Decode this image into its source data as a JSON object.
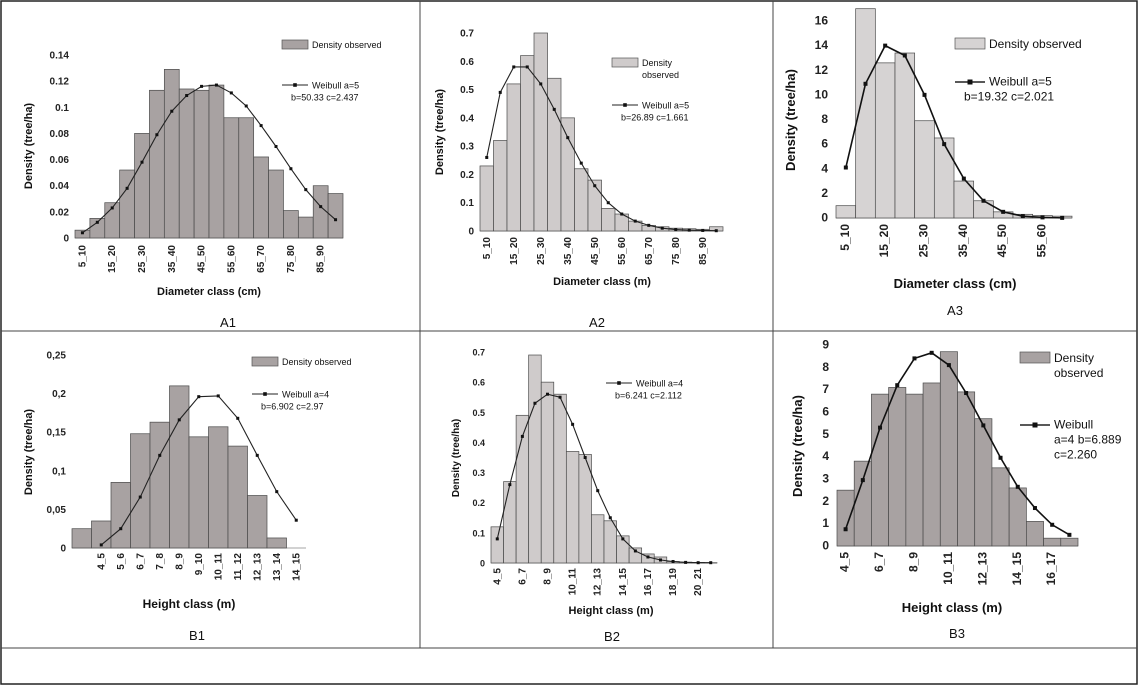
{
  "chart_data": [
    {
      "id": "A1",
      "type": "bar",
      "caption": "A1",
      "ylabel": "Density (tree/ha)",
      "xlabel": "Diameter class (cm)",
      "ylim": [
        0,
        0.14
      ],
      "yticks": [
        "0",
        "0.02",
        "0.04",
        "0.06",
        "0.08",
        "0.1",
        "0.12",
        "0.14"
      ],
      "categories": [
        "5_10",
        "10_15",
        "15_20",
        "20_25",
        "25_30",
        "30_35",
        "35_40",
        "40_45",
        "45_50",
        "50_55",
        "55_60",
        "60_65",
        "65_70",
        "70_75",
        "75_80",
        "80_85",
        "85_90",
        "90_95"
      ],
      "tick_labels": [
        "5_10",
        "15_20",
        "25_30",
        "35_40",
        "45_50",
        "55_60",
        "65_70",
        "75_80",
        "85_90"
      ],
      "bar_color": "#a8a2a2",
      "series": [
        {
          "name": "Density observed",
          "kind": "bar",
          "values": [
            0.006,
            0.015,
            0.027,
            0.052,
            0.08,
            0.113,
            0.129,
            0.114,
            0.113,
            0.117,
            0.092,
            0.092,
            0.062,
            0.052,
            0.021,
            0.016,
            0.04,
            0.034
          ]
        },
        {
          "name": "Weibull a=5",
          "kind": "line",
          "values": [
            0.004,
            0.012,
            0.023,
            0.038,
            0.058,
            0.079,
            0.097,
            0.109,
            0.116,
            0.117,
            0.111,
            0.101,
            0.086,
            0.07,
            0.053,
            0.037,
            0.024,
            0.014
          ]
        }
      ],
      "legend": {
        "bar": "Density observed",
        "line": "Weibull a=5",
        "line2": "b=50.33 c=2.437"
      }
    },
    {
      "id": "A2",
      "type": "bar",
      "caption": "A2",
      "ylabel": "Density (tree/ha)",
      "xlabel": "Diameter class (m)",
      "ylim": [
        0,
        0.7
      ],
      "yticks": [
        "0",
        "0.1",
        "0.2",
        "0.3",
        "0.4",
        "0.5",
        "0.6",
        "0.7"
      ],
      "categories": [
        "5_10",
        "10_15",
        "15_20",
        "20_25",
        "25_30",
        "30_35",
        "35_40",
        "40_45",
        "45_50",
        "50_55",
        "55_60",
        "60_65",
        "65_70",
        "70_75",
        "75_80",
        "80_85",
        "85_90",
        "90_95"
      ],
      "tick_labels": [
        "5_10",
        "15_20",
        "25_30",
        "35_40",
        "45_50",
        "55_60",
        "65_70",
        "75_80",
        "85_90"
      ],
      "bar_color": "#cfcbcb",
      "series": [
        {
          "name": "Density observed",
          "kind": "bar",
          "values": [
            0.23,
            0.32,
            0.52,
            0.62,
            0.7,
            0.54,
            0.4,
            0.22,
            0.18,
            0.08,
            0.06,
            0.035,
            0.02,
            0.015,
            0.01,
            0.008,
            0.006,
            0.015
          ]
        },
        {
          "name": "Weibull a=5",
          "kind": "line",
          "values": [
            0.26,
            0.49,
            0.58,
            0.58,
            0.52,
            0.43,
            0.33,
            0.24,
            0.16,
            0.1,
            0.06,
            0.035,
            0.02,
            0.01,
            0.005,
            0.003,
            0.002,
            0.001
          ]
        }
      ],
      "legend": {
        "bar": "Density",
        "bar2": "observed",
        "line": "Weibull a=5",
        "line2": "b=26.89 c=1.661"
      }
    },
    {
      "id": "A3",
      "type": "bar",
      "caption": "A3",
      "ylabel": "Density (tree/ha)",
      "xlabel": "Diameter class (cm)",
      "ylim": [
        0,
        16
      ],
      "yticks": [
        "0",
        "2",
        "4",
        "6",
        "8",
        "10",
        "12",
        "14",
        "16"
      ],
      "categories": [
        "5_10",
        "10_15",
        "15_20",
        "20_25",
        "25_30",
        "30_35",
        "35_40",
        "40_45",
        "45_50",
        "50_55",
        "55_60",
        "60_65"
      ],
      "tick_labels": [
        "5_10",
        "15_20",
        "25_30",
        "35_40",
        "45_50",
        "55_60"
      ],
      "bar_color": "#d6d3d3",
      "series": [
        {
          "name": "Density observed",
          "kind": "bar",
          "values": [
            1,
            17,
            12.6,
            13.4,
            7.9,
            6.5,
            3,
            1.4,
            0.5,
            0.3,
            0.2,
            0.15
          ]
        },
        {
          "name": "Weibull a=5",
          "kind": "line",
          "values": [
            4.1,
            10.9,
            14,
            13.2,
            10,
            6,
            3.2,
            1.4,
            0.5,
            0.15,
            0.05,
            0.01
          ]
        }
      ],
      "legend": {
        "bar": "Density observed",
        "line": "Weibull a=5",
        "line2": "b=19.32 c=2.021"
      }
    },
    {
      "id": "B1",
      "type": "bar",
      "caption": "B1",
      "ylabel": "Density (tree/ha)",
      "xlabel": "Height class (m)",
      "ylim": [
        0,
        0.25
      ],
      "yticks": [
        "0",
        "0,05",
        "0,1",
        "0,15",
        "0,2",
        "0,25"
      ],
      "categories": [
        "3_4",
        "4_5",
        "5_6",
        "6_7",
        "7_8",
        "8_9",
        "9_10",
        "10_11",
        "11_12",
        "12_13",
        "13_14",
        "14_15"
      ],
      "tick_labels": [
        "",
        "4_5",
        "5_6",
        "6_7",
        "7_8",
        "8_9",
        "9_10",
        "10_11",
        "11_12",
        "12_13",
        "13_14",
        "14_15"
      ],
      "bar_color": "#a8a2a2",
      "series": [
        {
          "name": "Density observed",
          "kind": "bar",
          "values": [
            0.025,
            0.035,
            0.085,
            0.148,
            0.163,
            0.21,
            0.144,
            0.157,
            0.132,
            0.068,
            0.013,
            0
          ]
        },
        {
          "name": "Weibull a=4",
          "kind": "line",
          "values": [
            null,
            0.004,
            0.025,
            0.066,
            0.12,
            0.166,
            0.196,
            0.197,
            0.168,
            0.12,
            0.073,
            0.036
          ]
        }
      ],
      "legend": {
        "bar": "Density observed",
        "line": "Weibull  a=4",
        "line2": "b=6.902 c=2.97"
      }
    },
    {
      "id": "B2",
      "type": "bar",
      "caption": "B2",
      "ylabel": "Density (tree/ha)",
      "xlabel": "Height class (m)",
      "ylim": [
        0,
        0.7
      ],
      "yticks": [
        "0",
        "0.1",
        "0.2",
        "0.3",
        "0.4",
        "0.5",
        "0.6",
        "0.7"
      ],
      "categories": [
        "4_5",
        "5_6",
        "6_7",
        "7_8",
        "8_9",
        "9_10",
        "10_11",
        "11_12",
        "12_13",
        "13_14",
        "14_15",
        "15_16",
        "16_17",
        "17_18",
        "18_19",
        "19_20",
        "20_21",
        "21_22"
      ],
      "tick_labels": [
        "4_5",
        "6_7",
        "8_9",
        "10_11",
        "12_13",
        "14_15",
        "16_17",
        "18_19",
        "20_21"
      ],
      "bar_color": "#cfcbcb",
      "series": [
        {
          "name": "Density observed",
          "kind": "bar",
          "values": [
            0.12,
            0.27,
            0.49,
            0.69,
            0.6,
            0.56,
            0.37,
            0.36,
            0.16,
            0.14,
            0.09,
            0.05,
            0.03,
            0.02,
            0.005,
            0.003,
            0.002,
            0.001
          ]
        },
        {
          "name": "Weibull a=4",
          "kind": "line",
          "values": [
            0.08,
            0.26,
            0.42,
            0.53,
            0.56,
            0.55,
            0.46,
            0.35,
            0.24,
            0.15,
            0.08,
            0.04,
            0.02,
            0.01,
            0.005,
            0.002,
            0.001,
            0.001
          ]
        }
      ],
      "legend": {
        "line": "Weibull a=4",
        "line2": "b=6.241 c=2.112"
      }
    },
    {
      "id": "B3",
      "type": "bar",
      "caption": "B3",
      "ylabel": "Density (tree/ha)",
      "xlabel": "Height class (m)",
      "ylim": [
        0,
        9
      ],
      "yticks": [
        "0",
        "1",
        "2",
        "3",
        "4",
        "5",
        "6",
        "7",
        "8",
        "9"
      ],
      "categories": [
        "4_5",
        "5_6",
        "6_7",
        "7_8",
        "8_9",
        "9_10",
        "10_11",
        "11_12",
        "12_13",
        "13_14",
        "14_15",
        "15_16",
        "16_17",
        "17_18"
      ],
      "tick_labels": [
        "4_5",
        "6_7",
        "8_9",
        "10_11",
        "12_13",
        "14_15",
        "16_17"
      ],
      "bar_color": "#a8a2a2",
      "series": [
        {
          "name": "Density observed",
          "kind": "bar",
          "values": [
            2.5,
            3.8,
            6.8,
            7.1,
            6.8,
            7.3,
            8.7,
            6.9,
            5.7,
            3.5,
            2.6,
            1.1,
            0.35,
            0.35
          ]
        },
        {
          "name": "Weibull",
          "kind": "line",
          "values": [
            0.75,
            2.95,
            5.3,
            7.2,
            8.4,
            8.65,
            8.1,
            6.85,
            5.4,
            3.95,
            2.65,
            1.7,
            0.95,
            0.5
          ]
        }
      ],
      "legend": {
        "bar": "Density",
        "bar2": "observed",
        "line": "Weibull",
        "line2": "a=4 b=6.889",
        "line3": "c=2.260"
      }
    }
  ]
}
